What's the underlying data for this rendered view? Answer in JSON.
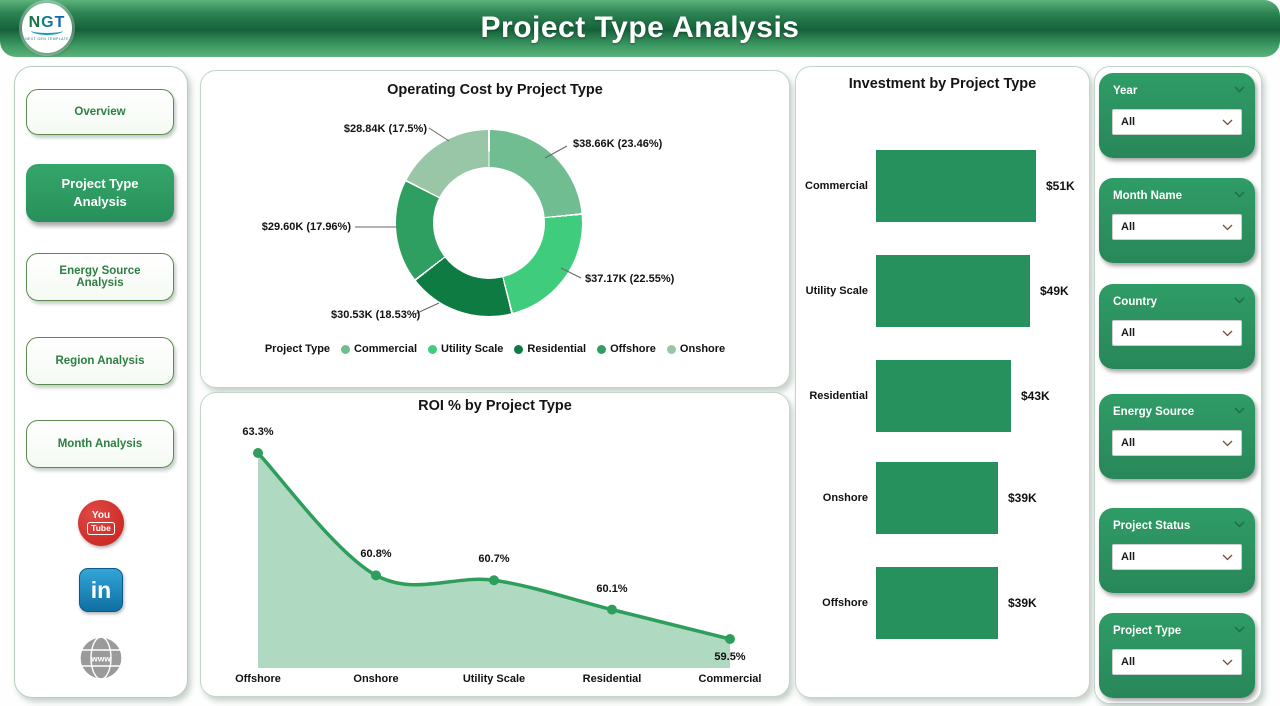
{
  "header": {
    "title": "Project Type Analysis",
    "logo": {
      "text": "NGT",
      "subtext": "NEXT GEN TEMPLATE"
    }
  },
  "sidebar": {
    "items": [
      {
        "label": "Overview",
        "active": false
      },
      {
        "label": "Project Type Analysis",
        "active": true
      },
      {
        "label": "Energy Source Analysis",
        "active": false
      },
      {
        "label": "Region Analysis",
        "active": false
      },
      {
        "label": "Month Analysis",
        "active": false
      }
    ],
    "social": {
      "youtube_line1": "You",
      "youtube_line2": "Tube",
      "linkedin_text": "in",
      "website_text": "www"
    }
  },
  "filters": {
    "items": [
      {
        "label": "Year",
        "value": "All"
      },
      {
        "label": "Month Name",
        "value": "All"
      },
      {
        "label": "Country",
        "value": "All"
      },
      {
        "label": "Energy Source",
        "value": "All"
      },
      {
        "label": "Project Status",
        "value": "All"
      },
      {
        "label": "Project Type",
        "value": "All"
      }
    ]
  },
  "theme": {
    "accent_green": "#2B9462",
    "header_dark_green": "#15613A",
    "card_border": "#C3D5C9",
    "youtube_red": "#C6201C",
    "linkedin_blue": "#1580B5",
    "globe_gray": "#9A9A9A"
  },
  "chart_data": [
    {
      "type": "pie",
      "title": "Operating Cost by Project Type",
      "legend_title": "Project Type",
      "legend_position": "bottom",
      "donut": true,
      "categories": [
        "Commercial",
        "Utility Scale",
        "Residential",
        "Offshore",
        "Onshore"
      ],
      "values": [
        38.66,
        37.17,
        30.53,
        29.6,
        28.84
      ],
      "percents": [
        23.46,
        22.55,
        18.53,
        17.96,
        17.5
      ],
      "labels": [
        "$38.66K (23.46%)",
        "$37.17K (22.55%)",
        "$30.53K (18.53%)",
        "$29.60K (17.96%)",
        "$28.84K (17.5%)"
      ],
      "colors": [
        "#6FBD90",
        "#3FCD7D",
        "#0E7B42",
        "#2F9E61",
        "#9AC6A8"
      ]
    },
    {
      "type": "area",
      "title": "ROI % by Project Type",
      "categories": [
        "Offshore",
        "Onshore",
        "Utility Scale",
        "Residential",
        "Commercial"
      ],
      "values": [
        63.3,
        60.8,
        60.7,
        60.1,
        59.5
      ],
      "labels": [
        "63.3%",
        "60.8%",
        "60.7%",
        "60.1%",
        "59.5%"
      ],
      "line_color": "#2D9E5C",
      "fill_color": "#A9D6BC",
      "ylim": [
        59.5,
        63.3
      ],
      "grid": false
    },
    {
      "type": "bar",
      "orientation": "horizontal",
      "title": "Investment by Project Type",
      "categories": [
        "Commercial",
        "Utility Scale",
        "Residential",
        "Onshore",
        "Offshore"
      ],
      "values": [
        51,
        49,
        43,
        39,
        39
      ],
      "labels": [
        "$51K",
        "$49K",
        "$43K",
        "$39K",
        "$39K"
      ],
      "bar_color": "#27915E",
      "xlim": [
        0,
        51
      ],
      "grid": false
    }
  ]
}
